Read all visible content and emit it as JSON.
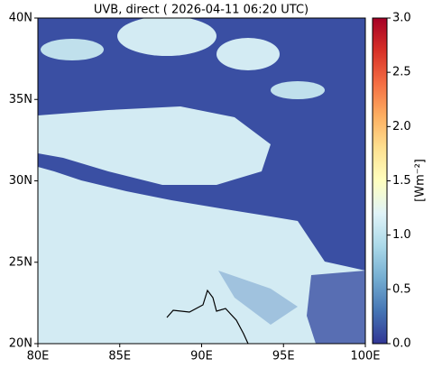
{
  "chart_data": {
    "type": "heatmap",
    "title": "UVB, direct ( 2026-04-11 06:20 UTC)",
    "xlim": [
      80,
      100
    ],
    "xticks": [
      {
        "value": 80,
        "label": "80E"
      },
      {
        "value": 85,
        "label": "85E"
      },
      {
        "value": 90,
        "label": "90E"
      },
      {
        "value": 95,
        "label": "95E"
      },
      {
        "value": 100,
        "label": "100E"
      }
    ],
    "ylim": [
      20,
      40
    ],
    "yticks": [
      {
        "value": 20,
        "label": "20N"
      },
      {
        "value": 25,
        "label": "25N"
      },
      {
        "value": 30,
        "label": "30N"
      },
      {
        "value": 35,
        "label": "35N"
      },
      {
        "value": 40,
        "label": "40N"
      }
    ],
    "colorbar": {
      "label": "[Wm⁻²]",
      "lim": [
        0,
        3
      ],
      "ticks": [
        {
          "value": 0,
          "label": "0.0"
        },
        {
          "value": 0.5,
          "label": "0.5"
        },
        {
          "value": 1,
          "label": "1.0"
        },
        {
          "value": 1.5,
          "label": "1.5"
        },
        {
          "value": 2,
          "label": "2.0"
        },
        {
          "value": 2.5,
          "label": "2.5"
        },
        {
          "value": 3,
          "label": "3.0"
        }
      ],
      "colormap": [
        "#313695",
        "#4575b4",
        "#74add1",
        "#abd9e9",
        "#e0f3f8",
        "#ffffbf",
        "#fee090",
        "#fdae61",
        "#f46d43",
        "#d73027",
        "#a50026"
      ]
    }
  }
}
